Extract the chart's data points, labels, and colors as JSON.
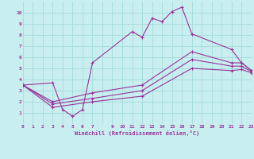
{
  "xlabel": "Windchill (Refroidissement éolien,°C)",
  "bg_color": "#c8eef0",
  "grid_color": "#aadddd",
  "line_color": "#993399",
  "xlim": [
    0,
    23
  ],
  "ylim": [
    0,
    11
  ],
  "xtick_labels": [
    "0",
    "1",
    "2",
    "3",
    "4",
    "5",
    "6",
    "7",
    "",
    "9",
    "10",
    "11",
    "12",
    "13",
    "14",
    "15",
    "16",
    "17",
    "18",
    "19",
    "20",
    "21",
    "22",
    "23"
  ],
  "ytick_labels": [
    "",
    "1",
    "2",
    "3",
    "4",
    "5",
    "6",
    "7",
    "8",
    "9",
    "10"
  ],
  "lines": [
    {
      "x": [
        0,
        3,
        4,
        5,
        6,
        7,
        11,
        12,
        13,
        14,
        15,
        16,
        17,
        21,
        22,
        23
      ],
      "y": [
        3.5,
        3.7,
        1.3,
        0.7,
        1.3,
        5.5,
        8.3,
        7.8,
        9.5,
        9.2,
        10.1,
        10.5,
        8.1,
        6.7,
        5.5,
        4.8
      ]
    },
    {
      "x": [
        0,
        3,
        7,
        12,
        17,
        21,
        22,
        23
      ],
      "y": [
        3.5,
        2.0,
        2.8,
        3.5,
        6.5,
        5.5,
        5.5,
        4.8
      ]
    },
    {
      "x": [
        0,
        3,
        7,
        12,
        17,
        21,
        22,
        23
      ],
      "y": [
        3.5,
        1.8,
        2.3,
        3.0,
        5.8,
        5.2,
        5.2,
        4.7
      ]
    },
    {
      "x": [
        0,
        3,
        7,
        12,
        17,
        21,
        22,
        23
      ],
      "y": [
        3.5,
        1.5,
        2.0,
        2.5,
        5.0,
        4.8,
        4.9,
        4.6
      ]
    }
  ]
}
